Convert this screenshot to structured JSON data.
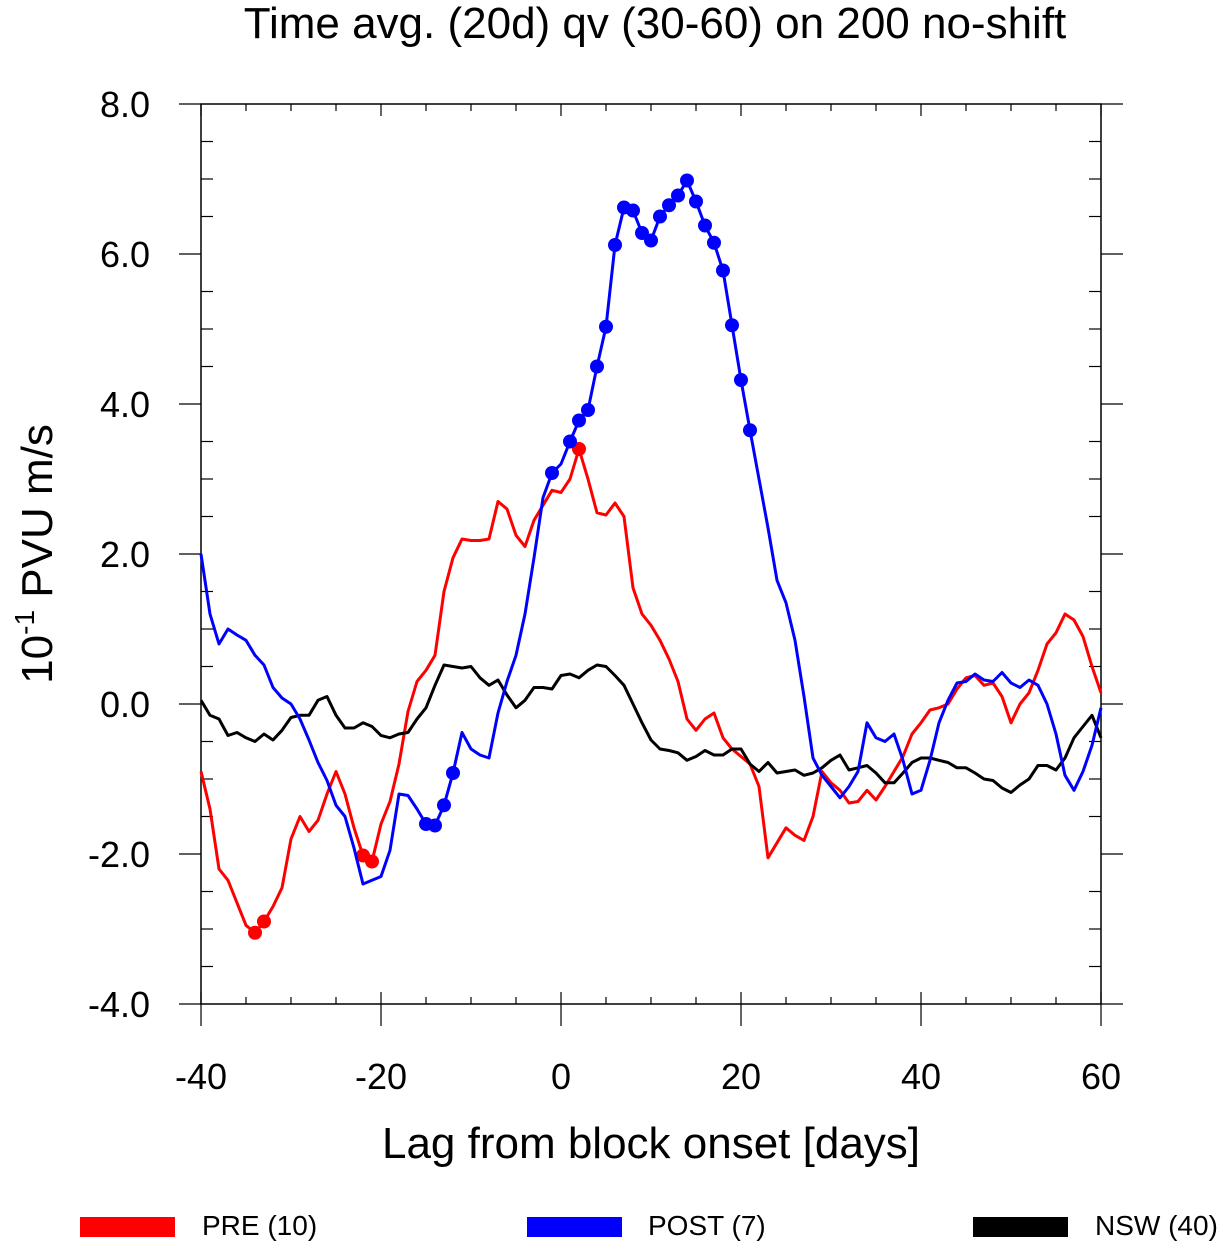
{
  "chart_data": {
    "type": "line",
    "title": "Time avg. (20d) qv (30-60) on 200 no-shift",
    "xlabel": "Lag from block onset [days]",
    "ylabel_base": "10",
    "ylabel_exp": "-1",
    "ylabel_rest": " PVU m/s",
    "xlim": [
      -40,
      60
    ],
    "ylim": [
      -4.0,
      8.0
    ],
    "xticks": [
      -40,
      -20,
      0,
      20,
      40,
      60
    ],
    "xtick_labels": [
      "-40",
      "-20",
      "0",
      "20",
      "40",
      "60"
    ],
    "yticks": [
      -4.0,
      -2.0,
      0.0,
      2.0,
      4.0,
      6.0,
      8.0
    ],
    "ytick_labels": [
      "-4.0",
      "-2.0",
      "0.0",
      "2.0",
      "4.0",
      "6.0",
      "8.0"
    ],
    "grid": false,
    "legend_position": "bottom",
    "series": [
      {
        "name": "PRE (10)",
        "color": "#ff0000",
        "x": [
          -40,
          -39,
          -38,
          -37,
          -36,
          -35,
          -34,
          -33,
          -32,
          -31,
          -30,
          -29,
          -28,
          -27,
          -26,
          -25,
          -24,
          -23,
          -22,
          -21,
          -20,
          -19,
          -18,
          -17,
          -16,
          -15,
          -14,
          -13,
          -12,
          -11,
          -10,
          -9,
          -8,
          -7,
          -6,
          -5,
          -4,
          -3,
          -2,
          -1,
          0,
          1,
          2,
          3,
          4,
          5,
          6,
          7,
          8,
          9,
          10,
          11,
          12,
          13,
          14,
          15,
          16,
          17,
          18,
          19,
          20,
          21,
          22,
          23,
          24,
          25,
          26,
          27,
          28,
          29,
          30,
          31,
          32,
          33,
          34,
          35,
          36,
          37,
          38,
          39,
          40,
          41,
          42,
          43,
          44,
          45,
          46,
          47,
          48,
          49,
          50,
          51,
          52,
          53,
          54,
          55,
          56,
          57,
          58,
          59,
          60
        ],
        "y": [
          -0.9,
          -1.4,
          -2.2,
          -2.35,
          -2.65,
          -2.95,
          -3.05,
          -2.9,
          -2.7,
          -2.45,
          -1.8,
          -1.5,
          -1.7,
          -1.55,
          -1.2,
          -0.9,
          -1.2,
          -1.65,
          -2.02,
          -2.1,
          -1.6,
          -1.3,
          -0.8,
          -0.1,
          0.3,
          0.45,
          0.65,
          1.5,
          1.95,
          2.2,
          2.18,
          2.18,
          2.2,
          2.7,
          2.6,
          2.25,
          2.1,
          2.45,
          2.65,
          2.85,
          2.82,
          3.0,
          3.4,
          3.0,
          2.55,
          2.52,
          2.68,
          2.5,
          1.55,
          1.2,
          1.05,
          0.85,
          0.6,
          0.3,
          -0.2,
          -0.35,
          -0.2,
          -0.12,
          -0.45,
          -0.6,
          -0.7,
          -0.8,
          -1.1,
          -2.05,
          -1.85,
          -1.65,
          -1.75,
          -1.82,
          -1.5,
          -0.9,
          -1.05,
          -1.15,
          -1.32,
          -1.3,
          -1.15,
          -1.28,
          -1.1,
          -0.9,
          -0.7,
          -0.4,
          -0.25,
          -0.08,
          -0.05,
          0.0,
          0.2,
          0.35,
          0.38,
          0.25,
          0.28,
          0.1,
          -0.25,
          0.0,
          0.15,
          0.45,
          0.8,
          0.95,
          1.2,
          1.12,
          0.9,
          0.5,
          0.15
        ],
        "markers_x": [
          -34,
          -33,
          -22,
          -21,
          2
        ],
        "markers_y": [
          -3.05,
          -2.9,
          -2.02,
          -2.1,
          3.4
        ]
      },
      {
        "name": "POST (7)",
        "color": "#0000ff",
        "x": [
          -40,
          -39,
          -38,
          -37,
          -36,
          -35,
          -34,
          -33,
          -32,
          -31,
          -30,
          -29,
          -28,
          -27,
          -26,
          -25,
          -24,
          -23,
          -22,
          -21,
          -20,
          -19,
          -18,
          -17,
          -16,
          -15,
          -14,
          -13,
          -12,
          -11,
          -10,
          -9,
          -8,
          -7,
          -6,
          -5,
          -4,
          -3,
          -2,
          -1,
          0,
          1,
          2,
          3,
          4,
          5,
          6,
          7,
          8,
          9,
          10,
          11,
          12,
          13,
          14,
          15,
          16,
          17,
          18,
          19,
          20,
          21,
          22,
          23,
          24,
          25,
          26,
          27,
          28,
          29,
          30,
          31,
          32,
          33,
          34,
          35,
          36,
          37,
          38,
          39,
          40,
          41,
          42,
          43,
          44,
          45,
          46,
          47,
          48,
          49,
          50,
          51,
          52,
          53,
          54,
          55,
          56,
          57,
          58,
          59,
          60
        ],
        "y": [
          2.0,
          1.2,
          0.8,
          1.0,
          0.92,
          0.85,
          0.65,
          0.52,
          0.22,
          0.08,
          0.0,
          -0.2,
          -0.48,
          -0.78,
          -1.02,
          -1.35,
          -1.5,
          -1.92,
          -2.4,
          -2.35,
          -2.3,
          -1.95,
          -1.2,
          -1.22,
          -1.4,
          -1.6,
          -1.62,
          -1.35,
          -0.92,
          -0.38,
          -0.6,
          -0.68,
          -0.72,
          -0.12,
          0.3,
          0.65,
          1.2,
          1.95,
          2.75,
          3.08,
          3.2,
          3.5,
          3.78,
          3.92,
          4.5,
          5.03,
          6.12,
          6.62,
          6.58,
          6.28,
          6.18,
          6.5,
          6.65,
          6.78,
          6.98,
          6.7,
          6.38,
          6.15,
          5.78,
          5.05,
          4.32,
          3.65,
          3.0,
          2.35,
          1.65,
          1.35,
          0.85,
          0.1,
          -0.72,
          -0.95,
          -1.1,
          -1.25,
          -1.1,
          -0.9,
          -0.25,
          -0.45,
          -0.5,
          -0.4,
          -0.75,
          -1.2,
          -1.15,
          -0.75,
          -0.25,
          0.05,
          0.28,
          0.3,
          0.4,
          0.32,
          0.3,
          0.42,
          0.28,
          0.22,
          0.32,
          0.25,
          0.0,
          -0.4,
          -0.95,
          -1.15,
          -0.9,
          -0.55,
          -0.05
        ],
        "markers_x": [
          -15,
          -14,
          -13,
          -12,
          -1,
          1,
          2,
          3,
          4,
          5,
          6,
          7,
          8,
          9,
          10,
          11,
          12,
          13,
          14,
          15,
          16,
          17,
          18,
          19,
          20,
          21
        ],
        "markers_y": [
          -1.6,
          -1.62,
          -1.35,
          -0.92,
          3.08,
          3.5,
          3.78,
          3.92,
          4.5,
          5.03,
          6.12,
          6.62,
          6.58,
          6.28,
          6.18,
          6.5,
          6.65,
          6.78,
          6.98,
          6.7,
          6.38,
          6.15,
          5.78,
          5.05,
          4.32,
          3.65
        ]
      },
      {
        "name": "NSW (40)",
        "color": "#000000",
        "x": [
          -40,
          -39,
          -38,
          -37,
          -36,
          -35,
          -34,
          -33,
          -32,
          -31,
          -30,
          -29,
          -28,
          -27,
          -26,
          -25,
          -24,
          -23,
          -22,
          -21,
          -20,
          -19,
          -18,
          -17,
          -16,
          -15,
          -14,
          -13,
          -12,
          -11,
          -10,
          -9,
          -8,
          -7,
          -6,
          -5,
          -4,
          -3,
          -2,
          -1,
          0,
          1,
          2,
          3,
          4,
          5,
          6,
          7,
          8,
          9,
          10,
          11,
          12,
          13,
          14,
          15,
          16,
          17,
          18,
          19,
          20,
          21,
          22,
          23,
          24,
          25,
          26,
          27,
          28,
          29,
          30,
          31,
          32,
          33,
          34,
          35,
          36,
          37,
          38,
          39,
          40,
          41,
          42,
          43,
          44,
          45,
          46,
          47,
          48,
          49,
          50,
          51,
          52,
          53,
          54,
          55,
          56,
          57,
          58,
          59,
          60
        ],
        "y": [
          0.05,
          -0.15,
          -0.2,
          -0.42,
          -0.38,
          -0.45,
          -0.5,
          -0.4,
          -0.48,
          -0.35,
          -0.18,
          -0.15,
          -0.15,
          0.05,
          0.1,
          -0.15,
          -0.32,
          -0.32,
          -0.25,
          -0.3,
          -0.42,
          -0.45,
          -0.4,
          -0.38,
          -0.2,
          -0.05,
          0.25,
          0.52,
          0.5,
          0.48,
          0.5,
          0.35,
          0.25,
          0.32,
          0.12,
          -0.05,
          0.05,
          0.22,
          0.22,
          0.2,
          0.38,
          0.4,
          0.35,
          0.45,
          0.52,
          0.5,
          0.38,
          0.25,
          0.0,
          -0.25,
          -0.48,
          -0.6,
          -0.62,
          -0.65,
          -0.75,
          -0.7,
          -0.62,
          -0.68,
          -0.68,
          -0.6,
          -0.6,
          -0.8,
          -0.9,
          -0.78,
          -0.92,
          -0.9,
          -0.88,
          -0.95,
          -0.92,
          -0.85,
          -0.75,
          -0.68,
          -0.88,
          -0.85,
          -0.82,
          -0.92,
          -1.05,
          -1.05,
          -0.92,
          -0.78,
          -0.72,
          -0.72,
          -0.75,
          -0.78,
          -0.85,
          -0.85,
          -0.92,
          -1.0,
          -1.02,
          -1.12,
          -1.18,
          -1.08,
          -1.0,
          -0.82,
          -0.82,
          -0.88,
          -0.72,
          -0.45,
          -0.3,
          -0.15,
          -0.45
        ]
      }
    ]
  }
}
